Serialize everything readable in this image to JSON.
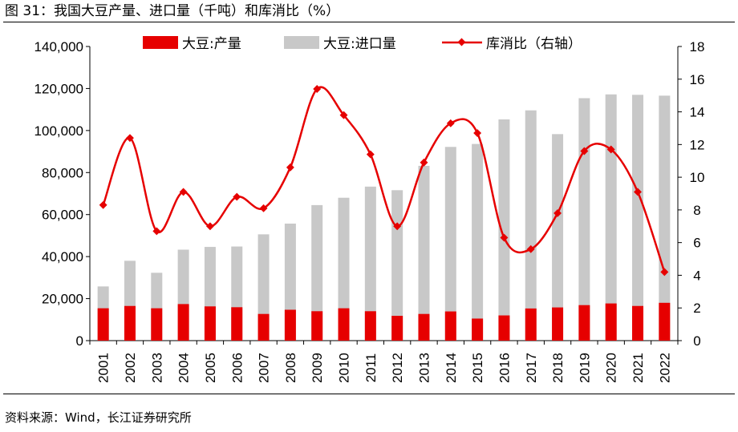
{
  "header": {
    "title": "图 31：我国大豆产量、进口量（千吨）和库消比（%）"
  },
  "footer": {
    "source": "资料来源：Wind，长江证券研究所"
  },
  "chart_data": {
    "type": "bar",
    "title": "我国大豆产量、进口量（千吨）和库消比（%）",
    "categories": [
      "2001",
      "2002",
      "2003",
      "2004",
      "2005",
      "2006",
      "2007",
      "2008",
      "2009",
      "2010",
      "2011",
      "2012",
      "2013",
      "2014",
      "2015",
      "2016",
      "2017",
      "2018",
      "2019",
      "2020",
      "2021",
      "2022"
    ],
    "series": [
      {
        "name": "大豆:产量",
        "type": "bar",
        "axis": "left",
        "color": "#e60000",
        "values": [
          15400,
          16500,
          15400,
          17400,
          16300,
          15900,
          12700,
          14700,
          14000,
          15400,
          14000,
          11800,
          12700,
          13900,
          10500,
          12000,
          15300,
          15800,
          16900,
          17700,
          16500,
          18000
        ]
      },
      {
        "name": "大豆:进口量",
        "type": "bar",
        "axis": "left",
        "color": "#c8c8c8",
        "values": [
          25800,
          38000,
          32300,
          43300,
          44600,
          44800,
          50600,
          55700,
          64500,
          68000,
          73300,
          71600,
          83200,
          92200,
          93600,
          105300,
          109600,
          98300,
          115400,
          117200,
          117000,
          116600
        ]
      },
      {
        "name": "库消比（右轴）",
        "type": "line",
        "axis": "right",
        "color": "#e60000",
        "values": [
          8.3,
          12.4,
          6.7,
          9.1,
          7.0,
          8.8,
          8.1,
          10.6,
          15.4,
          13.8,
          11.4,
          7.0,
          10.9,
          13.3,
          12.7,
          6.3,
          5.6,
          7.8,
          11.6,
          11.7,
          9.1,
          4.2
        ]
      }
    ],
    "left_axis": {
      "min": 0,
      "max": 140000,
      "step": 20000,
      "tick_labels": [
        "0",
        "20,000",
        "40,000",
        "60,000",
        "80,000",
        "100,000",
        "120,000",
        "140,000"
      ]
    },
    "right_axis": {
      "min": 0,
      "max": 18,
      "step": 2,
      "tick_labels": [
        "0",
        "2",
        "4",
        "6",
        "8",
        "10",
        "12",
        "14",
        "16",
        "18"
      ]
    },
    "legend_position": "top"
  }
}
